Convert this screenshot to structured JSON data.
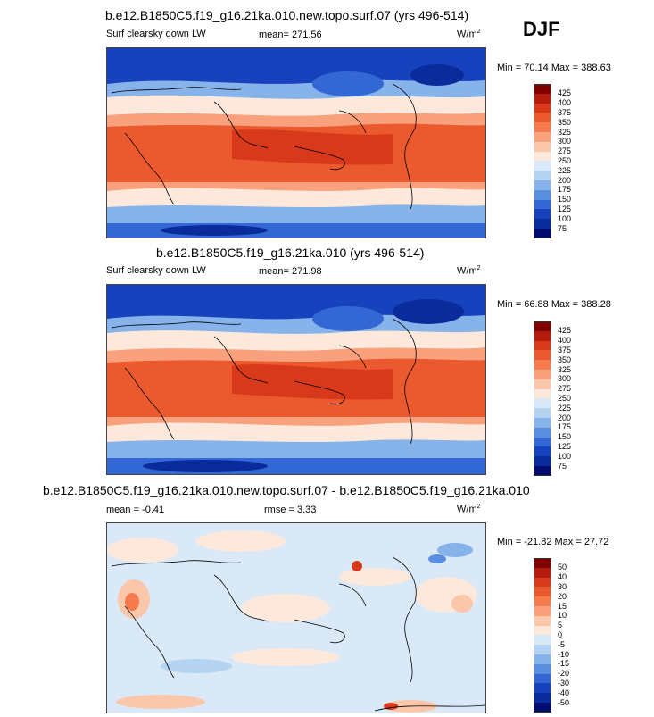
{
  "season": "DJF",
  "panels": [
    {
      "title": "b.e12.B1850C5.f19_g16.21ka.010.new.topo.surf.07 (yrs 496-514)",
      "variable": "Surf clearsky down LW",
      "mean_text": "mean= 271.56",
      "units": "W/m",
      "units_sup": "2",
      "minmax": "Min =  70.14 Max = 388.63",
      "colorbar": {
        "labels": [
          "425",
          "400",
          "375",
          "350",
          "325",
          "300",
          "275",
          "250",
          "225",
          "200",
          "175",
          "150",
          "125",
          "100",
          "75"
        ],
        "colors": [
          "#7f0000",
          "#b51c0d",
          "#d8391b",
          "#eb5a2e",
          "#f57b4d",
          "#f9a07d",
          "#fbc7ab",
          "#fde8dc",
          "#d9e9f7",
          "#b3d3f1",
          "#86b3ea",
          "#5a8ee0",
          "#3368d4",
          "#1643bd",
          "#0a2b9c",
          "#020c6e"
        ]
      }
    },
    {
      "title": "b.e12.B1850C5.f19_g16.21ka.010 (yrs 496-514)",
      "variable": "Surf clearsky down LW",
      "mean_text": "mean= 271.98",
      "units": "W/m",
      "units_sup": "2",
      "minmax": "Min = 66.88 Max = 388.28",
      "colorbar": {
        "labels": [
          "425",
          "400",
          "375",
          "350",
          "325",
          "300",
          "275",
          "250",
          "225",
          "200",
          "175",
          "150",
          "125",
          "100",
          "75"
        ],
        "colors": [
          "#7f0000",
          "#b51c0d",
          "#d8391b",
          "#eb5a2e",
          "#f57b4d",
          "#f9a07d",
          "#fbc7ab",
          "#fde8dc",
          "#d9e9f7",
          "#b3d3f1",
          "#86b3ea",
          "#5a8ee0",
          "#3368d4",
          "#1643bd",
          "#0a2b9c",
          "#020c6e"
        ]
      }
    },
    {
      "title": "b.e12.B1850C5.f19_g16.21ka.010.new.topo.surf.07 - b.e12.B1850C5.f19_g16.21ka.010",
      "mean_text": "mean =  -0.41",
      "rmse_text": "rmse =   3.33",
      "units": "W/m",
      "units_sup": "2",
      "minmax": "Min = -21.82 Max =  27.72",
      "colorbar": {
        "labels": [
          "50",
          "40",
          "30",
          "20",
          "15",
          "10",
          "5",
          "0",
          "-5",
          "-10",
          "-15",
          "-20",
          "-30",
          "-40",
          "-50"
        ],
        "colors": [
          "#7f0000",
          "#b51c0d",
          "#d8391b",
          "#eb5a2e",
          "#f57b4d",
          "#f9a07d",
          "#fbc7ab",
          "#fde8dc",
          "#d9e9f7",
          "#b3d3f1",
          "#86b3ea",
          "#5a8ee0",
          "#3368d4",
          "#1643bd",
          "#0a2b9c",
          "#020c6e"
        ]
      }
    }
  ]
}
